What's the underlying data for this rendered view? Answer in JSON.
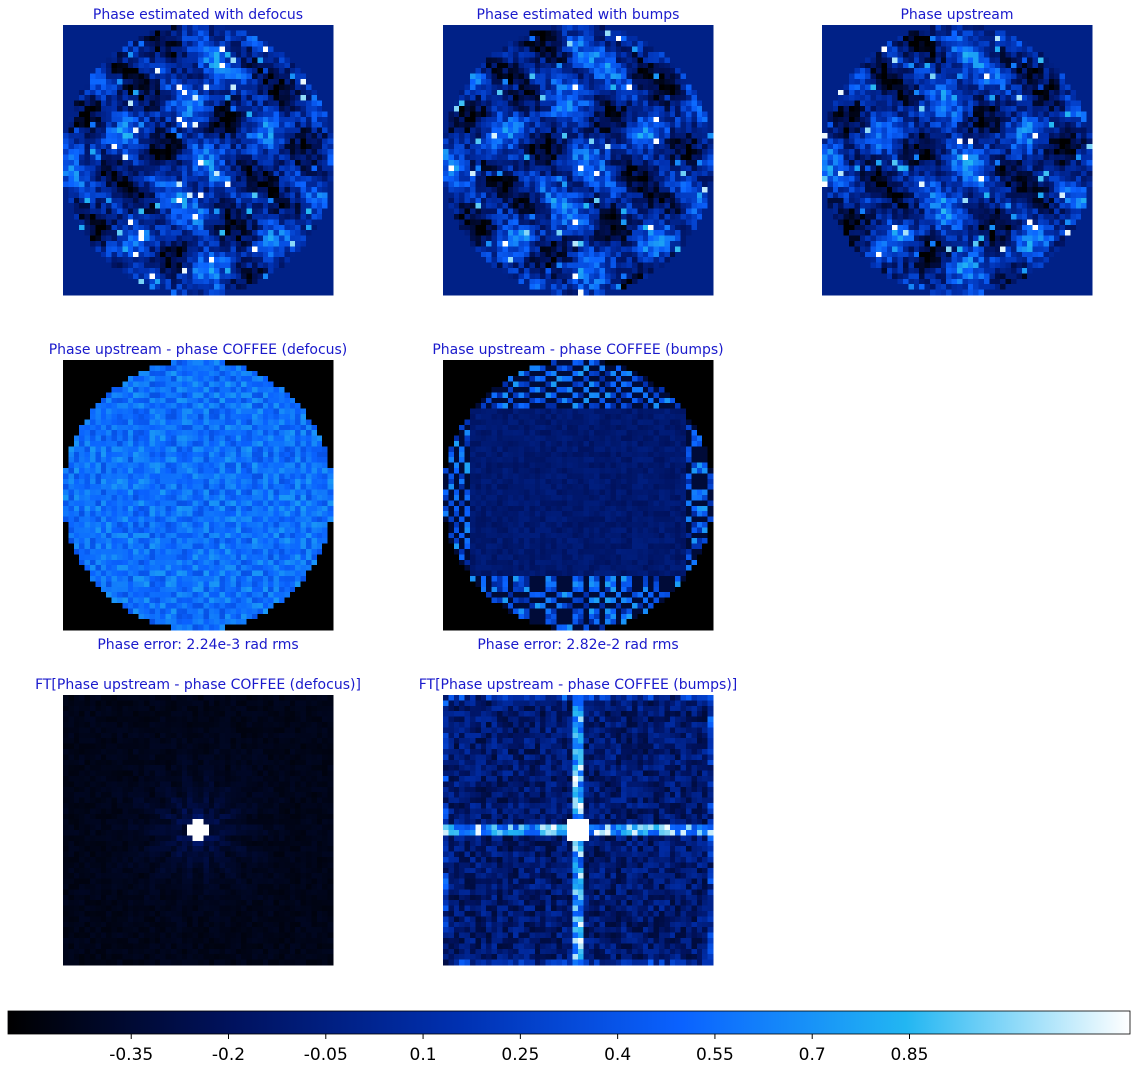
{
  "panels": [
    {
      "title": "Phase estimated with defocus",
      "pattern": "phase"
    },
    {
      "title": "Phase estimated with bumps",
      "pattern": "phase"
    },
    {
      "title": "Phase upstream",
      "pattern": "phase"
    },
    {
      "title": "Phase upstream - phase COFFEE (defocus)",
      "caption": "Phase error: 2.24e-3 rad rms",
      "pattern": "diff-defocus"
    },
    {
      "title": "Phase upstream - phase COFFEE (bumps)",
      "caption": "Phase error: 2.82e-2 rad rms",
      "pattern": "diff-bumps"
    },
    {
      "title": "FT[Phase upstream - phase COFFEE (defocus)]",
      "pattern": "ft-defocus"
    },
    {
      "title": "FT[Phase upstream - phase COFFEE (bumps)]",
      "pattern": "ft-bumps"
    }
  ],
  "colorbar": {
    "lim": [
      -0.54,
      1.19
    ],
    "ticks": [
      -0.35,
      -0.2,
      -0.05,
      0.1,
      0.25,
      0.4,
      0.55,
      0.7,
      0.85
    ],
    "colormap": [
      "#000000",
      "#00125e",
      "#0030b0",
      "#0a62ff",
      "#22b6f2",
      "#ffffff"
    ]
  }
}
